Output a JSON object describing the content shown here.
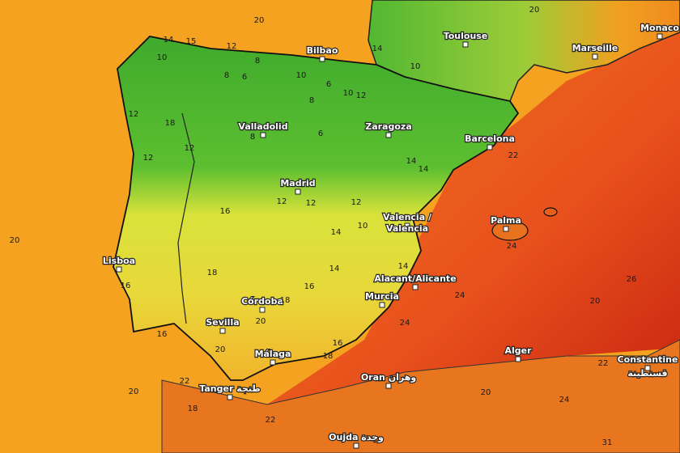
{
  "cities": [
    "Toulouse",
    "Monaco",
    "Marseille",
    "Bilbao",
    "Valladolid",
    "Zaragoza",
    "Barcelona",
    "Madrid",
    "Valencia /",
    "Valencia",
    "Palma",
    "Lisboa",
    "Alacant/Alicante",
    "Murcia",
    "Córdoba",
    "Sevilla",
    "Málaga",
    "Alger",
    "Constantine",
    "قسنطينة",
    "Tanger طنجة",
    "Oran وهران",
    "Oujda وجدة"
  ],
  "isotherms": [
    14,
    15,
    12,
    8,
    6,
    8,
    10,
    10,
    6,
    10,
    12,
    14,
    10,
    20,
    12,
    18,
    12,
    8,
    8,
    6,
    12,
    12,
    12,
    14,
    14,
    22,
    16,
    12,
    14,
    10,
    20,
    18,
    16,
    14,
    14,
    24,
    16,
    18,
    20,
    16,
    24,
    26,
    20,
    20,
    16,
    18,
    24,
    22,
    22,
    20,
    18,
    22,
    20,
    20,
    24,
    31
  ]
}
